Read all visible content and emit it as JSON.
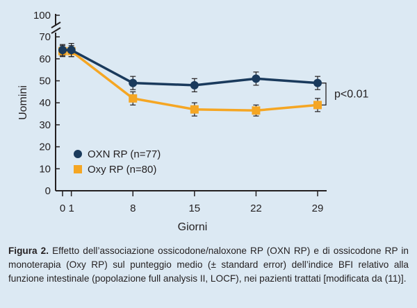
{
  "chart_data": {
    "type": "line",
    "xlabel": "Giorni",
    "ylabel": "Uomini",
    "x": [
      0,
      1,
      8,
      15,
      22,
      29
    ],
    "x_ticks": [
      0,
      1,
      8,
      15,
      22,
      29
    ],
    "y_ticks": [
      0,
      10,
      20,
      30,
      40,
      50,
      60,
      70,
      100
    ],
    "y_axis_break": "between 70 and 100",
    "ylim": [
      0,
      100
    ],
    "legend_position": "bottom-left",
    "grid": false,
    "series": [
      {
        "name": "OXN RP (n=77)",
        "color": "#1a3a5c",
        "marker": "circle",
        "values": [
          64,
          64,
          49,
          48,
          51,
          49
        ],
        "errors": [
          2.5,
          3,
          3,
          3,
          3,
          3
        ]
      },
      {
        "name": "Oxy RP (n=80)",
        "color": "#f5a623",
        "marker": "square",
        "values": [
          63.5,
          63.5,
          42,
          37,
          36.5,
          39
        ],
        "errors": [
          2.5,
          2.5,
          3,
          3,
          2.5,
          3
        ]
      }
    ],
    "annotation": "p<0.01"
  },
  "caption": {
    "label": "Figura 2.",
    "text": " Effetto dell’associazione ossicodone/naloxone RP (OXN RP) e di ossicodone RP in monoterapia (Oxy RP) sul punteggio medio (± standard error) dell’indice BFI relativo alla funzione intestinale (popolazione full analysis II, LOCF), nei pazienti trattati [modificata da (11)]."
  }
}
